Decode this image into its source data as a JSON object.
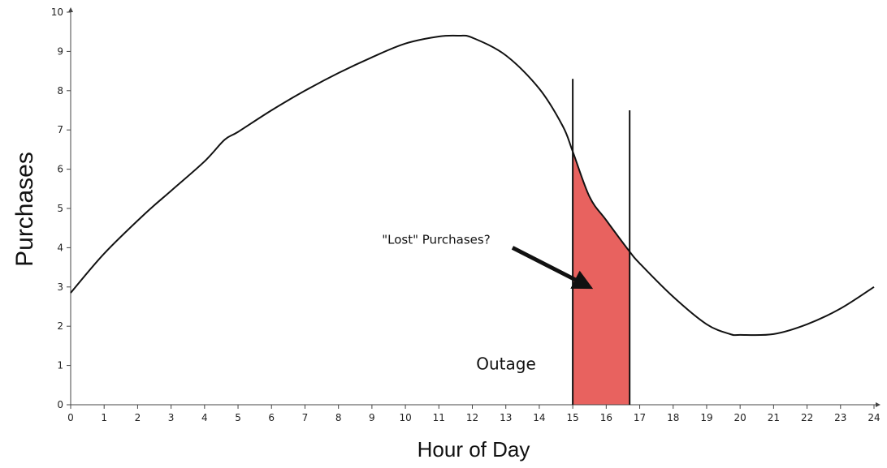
{
  "chart_data": {
    "type": "line",
    "title": "",
    "xlabel": "Hour of Day",
    "ylabel": "Purchases",
    "xlim": [
      0,
      24
    ],
    "ylim": [
      0,
      10
    ],
    "x_ticks": [
      0,
      1,
      2,
      3,
      4,
      5,
      6,
      7,
      8,
      9,
      10,
      11,
      12,
      13,
      14,
      15,
      16,
      17,
      18,
      19,
      20,
      21,
      22,
      23,
      24
    ],
    "y_ticks": [
      0,
      1,
      2,
      3,
      4,
      5,
      6,
      7,
      8,
      9,
      10
    ],
    "grid": false,
    "series": [
      {
        "points": [
          [
            0,
            2.85
          ],
          [
            1,
            3.85
          ],
          [
            2.2,
            4.85
          ],
          [
            3,
            5.45
          ],
          [
            4,
            6.2
          ],
          [
            4.6,
            6.75
          ],
          [
            5,
            6.95
          ],
          [
            6,
            7.5
          ],
          [
            7,
            8.0
          ],
          [
            8,
            8.45
          ],
          [
            9,
            8.85
          ],
          [
            10,
            9.2
          ],
          [
            11,
            9.38
          ],
          [
            11.6,
            9.4
          ],
          [
            12,
            9.35
          ],
          [
            13,
            8.9
          ],
          [
            14,
            8.05
          ],
          [
            14.7,
            7.1
          ],
          [
            15,
            6.45
          ],
          [
            15.5,
            5.3
          ],
          [
            16,
            4.7
          ],
          [
            16.7,
            3.9
          ],
          [
            17,
            3.6
          ],
          [
            18,
            2.75
          ],
          [
            19,
            2.05
          ],
          [
            19.7,
            1.8
          ],
          [
            20,
            1.78
          ],
          [
            21,
            1.8
          ],
          [
            22,
            2.05
          ],
          [
            23,
            2.45
          ],
          [
            24,
            3.0
          ]
        ],
        "color": "#111111"
      }
    ],
    "shaded_region": {
      "x_start": 15,
      "x_end": 16.7,
      "color": "#e8625f"
    },
    "vertical_markers": [
      {
        "x": 15,
        "y_top": 8.3
      },
      {
        "x": 16.7,
        "y_top": 7.5
      }
    ],
    "annotations": [
      {
        "text": "\"Lost\" Purchases?",
        "x": 9.3,
        "y": 4.1,
        "arrow_from": [
          13.2,
          4.0
        ],
        "arrow_to": [
          15.5,
          3.0
        ]
      },
      {
        "text": "Outage",
        "x": 13.9,
        "y": 0.9
      }
    ]
  }
}
